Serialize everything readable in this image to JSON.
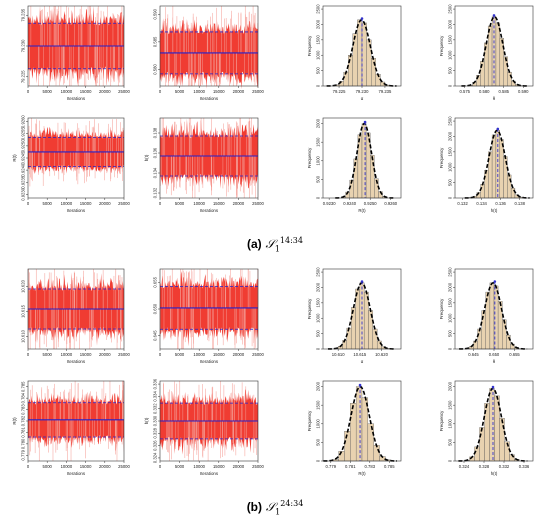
{
  "captions": [
    {
      "label": "(a)",
      "symbol": "𝒮",
      "sub": "1",
      "sup": "14:34"
    },
    {
      "label": "(b)",
      "symbol": "𝒮",
      "sub": "1",
      "sup": "24:34"
    }
  ],
  "colors": {
    "trace": "#f03c32",
    "trace_light": "#f59a92",
    "mean_line": "#2222cc",
    "ci_line": "#2222cc",
    "bar_fill": "#e8d2b0",
    "bar_edge": "#555555",
    "density": "#000000",
    "hist_mean": "#3333cc"
  },
  "chart_data": [
    {
      "type": "line",
      "panel": "a-trace-alpha",
      "xlabel": "Iterations",
      "ylabel": "",
      "xticks": [
        "0",
        "5000",
        "10000",
        "15000",
        "20000",
        "25000"
      ],
      "xlim": [
        0,
        25000
      ],
      "yticks": [
        "79.225",
        "79.230",
        "79.235"
      ],
      "ylim": [
        79.2235,
        79.2365
      ],
      "mean": 79.23,
      "ci": [
        79.2263,
        79.2337
      ]
    },
    {
      "type": "line",
      "panel": "a-trace-theta",
      "xlabel": "Iterations",
      "ylabel": "",
      "xticks": [
        "0",
        "5000",
        "10000",
        "15000",
        "20000",
        "25000"
      ],
      "xlim": [
        0,
        25000
      ],
      "yticks": [
        "0.580",
        "0.585",
        "0.590"
      ],
      "ylim": [
        0.577,
        0.5915
      ],
      "mean": 0.583,
      "ci": [
        0.5792,
        0.5868
      ]
    },
    {
      "type": "bar",
      "panel": "a-hist-alpha",
      "xlabel": "α",
      "ylabel": "Frequency",
      "yticks": [
        "0",
        "500",
        "1000",
        "1500",
        "2000",
        "2500"
      ],
      "ylim": [
        0,
        2600
      ],
      "xticks": [
        "79.225",
        "79.230",
        "79.235"
      ],
      "xlim": [
        79.2215,
        79.2385
      ],
      "categories": [
        "79.2245",
        "79.2255",
        "79.2265",
        "79.2275",
        "79.2285",
        "79.2295",
        "79.2305",
        "79.2315",
        "79.2325",
        "79.2335",
        "79.2345",
        "79.2355"
      ],
      "values": [
        40,
        150,
        450,
        1000,
        1700,
        2150,
        2050,
        1500,
        900,
        380,
        130,
        30
      ],
      "mean": 79.23
    },
    {
      "type": "bar",
      "panel": "a-hist-theta",
      "xlabel": "θ",
      "ylabel": "Frequency",
      "yticks": [
        "0",
        "500",
        "1000",
        "1500",
        "2000",
        "2500"
      ],
      "ylim": [
        0,
        2600
      ],
      "xticks": [
        "0.575",
        "0.580",
        "0.585",
        "0.590"
      ],
      "xlim": [
        0.5725,
        0.5925
      ],
      "categories": [
        "0.5765",
        "0.5775",
        "0.5785",
        "0.5795",
        "0.5805",
        "0.5815",
        "0.5825",
        "0.5835",
        "0.5845",
        "0.5855",
        "0.5865",
        "0.5875",
        "0.5885",
        "0.5895"
      ],
      "values": [
        30,
        120,
        350,
        800,
        1400,
        1950,
        2250,
        2050,
        1550,
        950,
        450,
        160,
        50,
        15
      ],
      "mean": 0.5825
    },
    {
      "type": "line",
      "panel": "a-trace-R",
      "xlabel": "Iterations",
      "ylabel": "R(t)",
      "xticks": [
        "0",
        "5000",
        "10000",
        "15000",
        "20000",
        "25000"
      ],
      "xlim": [
        0,
        25000
      ],
      "yticks": [
        "0.9230",
        "0.9235",
        "0.9240",
        "0.9245",
        "0.9250",
        "0.9255",
        "0.9260"
      ],
      "ylim": [
        0.92285,
        0.92615
      ],
      "mean": 0.92475,
      "ci": [
        0.92415,
        0.92535
      ]
    },
    {
      "type": "line",
      "panel": "a-trace-h",
      "xlabel": "Iterations",
      "ylabel": "h(t)",
      "xticks": [
        "0",
        "5000",
        "10000",
        "15000",
        "20000",
        "25000"
      ],
      "xlim": [
        0,
        25000
      ],
      "yticks": [
        "0.132",
        "0.134",
        "0.136",
        "0.138"
      ],
      "ylim": [
        0.1315,
        0.1395
      ],
      "mean": 0.1357,
      "ci": [
        0.1337,
        0.1377
      ]
    },
    {
      "type": "bar",
      "panel": "a-hist-R",
      "xlabel": "R(t)",
      "ylabel": "Frequency",
      "yticks": [
        "0",
        "500",
        "1000",
        "1500",
        "2000"
      ],
      "ylim": [
        0,
        2150
      ],
      "xticks": [
        "0.9230",
        "0.9240",
        "0.9250",
        "0.9260"
      ],
      "xlim": [
        0.9227,
        0.9265
      ],
      "categories": [
        "0.9237",
        "0.9239",
        "0.9241",
        "0.9243",
        "0.9245",
        "0.9247",
        "0.9249",
        "0.9251",
        "0.9253",
        "0.9255",
        "0.9257"
      ],
      "values": [
        30,
        160,
        480,
        1050,
        1700,
        2000,
        1750,
        1150,
        520,
        170,
        40
      ],
      "mean": 0.92475
    },
    {
      "type": "bar",
      "panel": "a-hist-h",
      "xlabel": "h(t)",
      "ylabel": "Frequency",
      "yticks": [
        "0",
        "500",
        "1000",
        "1500",
        "2000",
        "2500"
      ],
      "ylim": [
        0,
        2600
      ],
      "xticks": [
        "0.132",
        "0.134",
        "0.136",
        "0.138"
      ],
      "xlim": [
        0.1312,
        0.1394
      ],
      "categories": [
        "0.1329",
        "0.1333",
        "0.1337",
        "0.1341",
        "0.1345",
        "0.1349",
        "0.1353",
        "0.1357",
        "0.1361",
        "0.1365",
        "0.1369",
        "0.1373",
        "0.1377",
        "0.1381"
      ],
      "values": [
        20,
        60,
        180,
        450,
        900,
        1500,
        2050,
        2200,
        1900,
        1350,
        750,
        320,
        110,
        30
      ],
      "mean": 0.1357
    },
    {
      "type": "line",
      "panel": "b-trace-alpha",
      "xlabel": "Iterations",
      "ylabel": "",
      "xticks": [
        "0",
        "5000",
        "10000",
        "15000",
        "20000",
        "25000"
      ],
      "xlim": [
        0,
        25000
      ],
      "yticks": [
        "10.610",
        "10.615",
        "10.620"
      ],
      "ylim": [
        10.6075,
        10.6235
      ],
      "mean": 10.6155,
      "ci": [
        10.6115,
        10.6195
      ]
    },
    {
      "type": "line",
      "panel": "b-trace-theta",
      "xlabel": "Iterations",
      "ylabel": "",
      "xticks": [
        "0",
        "5000",
        "10000",
        "15000",
        "20000",
        "25000"
      ],
      "xlim": [
        0,
        25000
      ],
      "yticks": [
        "0.645",
        "0.650",
        "0.655"
      ],
      "ylim": [
        0.6425,
        0.6575
      ],
      "mean": 0.6502,
      "ci": [
        0.6462,
        0.6542
      ]
    },
    {
      "type": "bar",
      "panel": "b-hist-alpha",
      "xlabel": "α",
      "ylabel": "Frequency",
      "yticks": [
        "0",
        "500",
        "1000",
        "1500",
        "2000",
        "2500"
      ],
      "ylim": [
        0,
        2600
      ],
      "xticks": [
        "10.610",
        "10.615",
        "10.620"
      ],
      "xlim": [
        10.6065,
        10.6245
      ],
      "categories": [
        "10.6095",
        "10.6105",
        "10.6115",
        "10.6125",
        "10.6135",
        "10.6145",
        "10.6155",
        "10.6165",
        "10.6175",
        "10.6185",
        "10.6195",
        "10.6205",
        "10.6215"
      ],
      "values": [
        20,
        90,
        280,
        680,
        1350,
        1950,
        2150,
        1850,
        1250,
        650,
        260,
        80,
        20
      ],
      "mean": 10.6155
    },
    {
      "type": "bar",
      "panel": "b-hist-theta",
      "xlabel": "θ",
      "ylabel": "Frequency",
      "yticks": [
        "0",
        "500",
        "1000",
        "1500",
        "2000",
        "2500"
      ],
      "ylim": [
        0,
        2600
      ],
      "xticks": [
        "0.645",
        "0.650",
        "0.655"
      ],
      "xlim": [
        0.6405,
        0.6595
      ],
      "categories": [
        "0.6435",
        "0.6445",
        "0.6455",
        "0.6465",
        "0.6475",
        "0.6485",
        "0.6495",
        "0.6505",
        "0.6515",
        "0.6525",
        "0.6535",
        "0.6545",
        "0.6555",
        "0.6565"
      ],
      "values": [
        20,
        80,
        260,
        650,
        1250,
        1850,
        2150,
        2050,
        1550,
        950,
        450,
        160,
        50,
        15
      ],
      "mean": 0.6502
    },
    {
      "type": "line",
      "panel": "b-trace-R",
      "xlabel": "Iterations",
      "ylabel": "R(t)",
      "xticks": [
        "0",
        "5000",
        "10000",
        "15000",
        "20000",
        "25000"
      ],
      "xlim": [
        0,
        25000
      ],
      "yticks": [
        "0.779",
        "0.780",
        "0.781",
        "0.782",
        "0.783",
        "0.784",
        "0.785"
      ],
      "ylim": [
        0.7785,
        0.7855
      ],
      "mean": 0.7821,
      "ci": [
        0.7806,
        0.7836
      ]
    },
    {
      "type": "line",
      "panel": "b-trace-h",
      "xlabel": "Iterations",
      "ylabel": "h(t)",
      "xticks": [
        "0",
        "5000",
        "10000",
        "15000",
        "20000",
        "25000"
      ],
      "xlim": [
        0,
        25000
      ],
      "yticks": [
        "0.324",
        "0.326",
        "0.328",
        "0.330",
        "0.332",
        "0.334",
        "0.336"
      ],
      "ylim": [
        0.3235,
        0.3365
      ],
      "mean": 0.33,
      "ci": [
        0.3271,
        0.3329
      ]
    },
    {
      "type": "bar",
      "panel": "b-hist-R",
      "xlabel": "R(t)",
      "ylabel": "Frequency",
      "yticks": [
        "0",
        "500",
        "1000",
        "1500",
        "2000"
      ],
      "ylim": [
        0,
        2150
      ],
      "xticks": [
        "0.779",
        "0.781",
        "0.783",
        "0.785"
      ],
      "xlim": [
        0.7782,
        0.7862
      ],
      "categories": [
        "0.7795",
        "0.7801",
        "0.7807",
        "0.7813",
        "0.7819",
        "0.7825",
        "0.7831",
        "0.7837",
        "0.7843",
        "0.7849"
      ],
      "values": [
        40,
        260,
        800,
        1550,
        2000,
        1700,
        1000,
        420,
        120,
        30
      ],
      "mean": 0.782
    },
    {
      "type": "bar",
      "panel": "b-hist-h",
      "xlabel": "h(t)",
      "ylabel": "Frequency",
      "yticks": [
        "0",
        "500",
        "1000",
        "1500",
        "2000"
      ],
      "ylim": [
        0,
        2150
      ],
      "xticks": [
        "0.324",
        "0.328",
        "0.332",
        "0.336"
      ],
      "xlim": [
        0.3222,
        0.3378
      ],
      "categories": [
        "0.3246",
        "0.3256",
        "0.3266",
        "0.3276",
        "0.3286",
        "0.3296",
        "0.3306",
        "0.3316",
        "0.3326",
        "0.3336",
        "0.3346"
      ],
      "values": [
        20,
        110,
        380,
        900,
        1550,
        1950,
        1750,
        1150,
        520,
        170,
        40
      ],
      "mean": 0.3298
    }
  ]
}
